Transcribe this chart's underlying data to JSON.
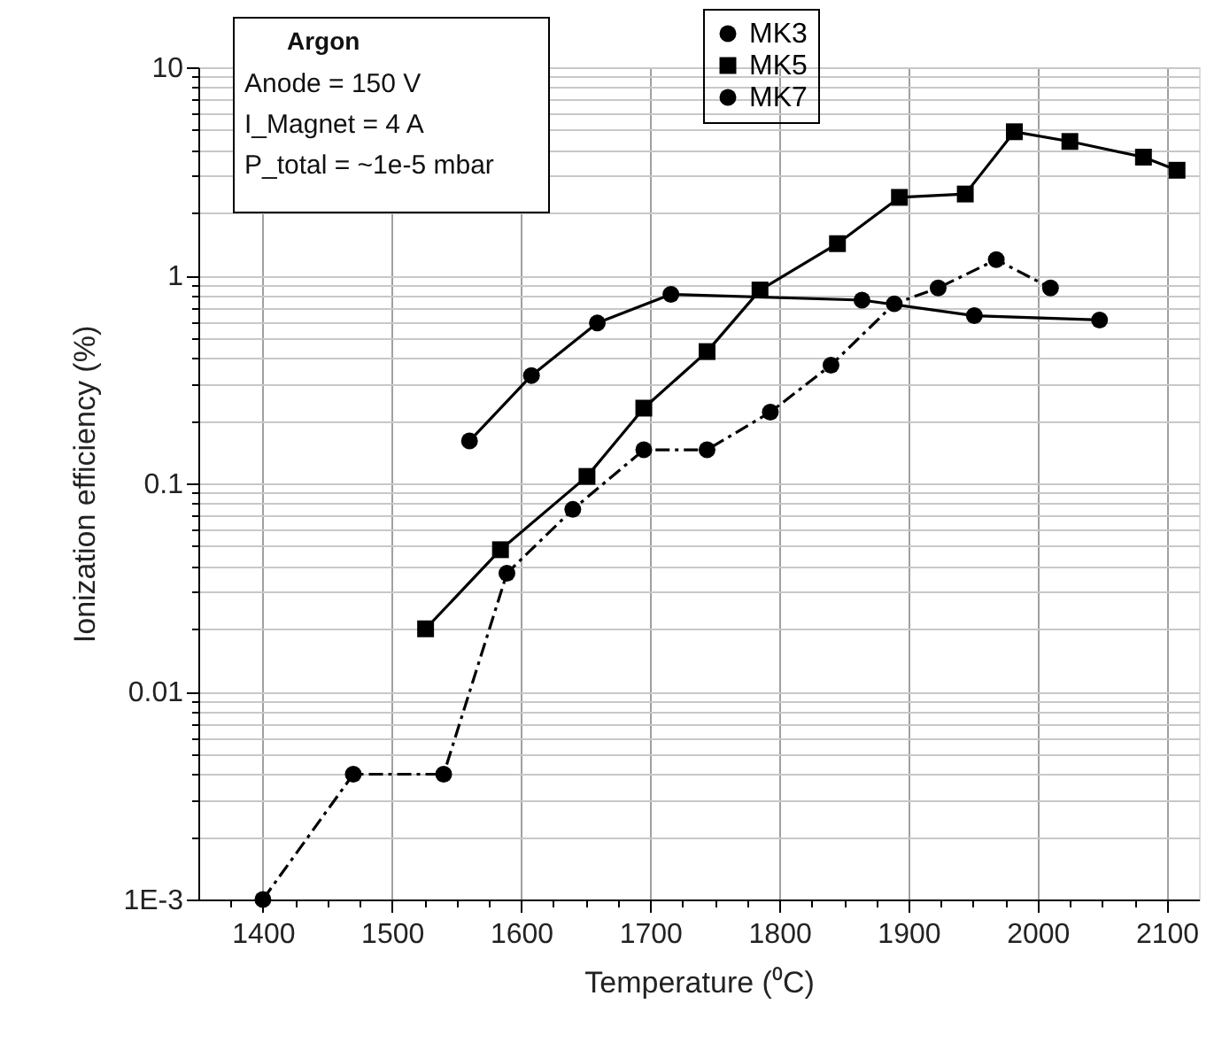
{
  "chart_data": {
    "type": "line",
    "xlabel": "Temperature (⁰C)",
    "ylabel": "Ionization efficiency (%)",
    "annotations": [
      "Argon",
      "Anode = 150 V",
      "I_Magnet = 4 A",
      "P_total = ~1e-5 mbar"
    ],
    "log": "y",
    "grid": true,
    "legend": "top",
    "xlim": [
      1350,
      2125
    ],
    "ylim": [
      0.001,
      10
    ],
    "xticks": [
      {
        "value": 1375,
        "label": null
      },
      1400,
      {
        "value": 1425,
        "label": null
      },
      {
        "value": 1450,
        "label": null
      },
      {
        "value": 1475,
        "label": null
      },
      1500,
      {
        "value": 1525,
        "label": null
      },
      {
        "value": 1550,
        "label": null
      },
      {
        "value": 1575,
        "label": null
      },
      1600,
      {
        "value": 1625,
        "label": null
      },
      {
        "value": 1650,
        "label": null
      },
      {
        "value": 1675,
        "label": null
      },
      1700,
      {
        "value": 1725,
        "label": null
      },
      {
        "value": 1750,
        "label": null
      },
      {
        "value": 1775,
        "label": null
      },
      1800,
      {
        "value": 1825,
        "label": null
      },
      {
        "value": 1850,
        "label": null
      },
      {
        "value": 1875,
        "label": null
      },
      1900,
      {
        "value": 1925,
        "label": null
      },
      {
        "value": 1950,
        "label": null
      },
      {
        "value": 1975,
        "label": null
      },
      2000,
      {
        "value": 2025,
        "label": null
      },
      {
        "value": 2050,
        "label": null
      },
      {
        "value": 2075,
        "label": null
      },
      2100
    ],
    "yticks": [
      {
        "value": 0.001,
        "label": "1E-3"
      },
      {
        "value": 0.002,
        "label": null
      },
      {
        "value": 0.003,
        "label": null
      },
      {
        "value": 0.004,
        "label": null
      },
      {
        "value": 0.005,
        "label": null
      },
      {
        "value": 0.006,
        "label": null
      },
      {
        "value": 0.007,
        "label": null
      },
      {
        "value": 0.008,
        "label": null
      },
      {
        "value": 0.009,
        "label": null
      },
      0.01,
      {
        "value": 0.02,
        "label": null
      },
      {
        "value": 0.03,
        "label": null
      },
      {
        "value": 0.04,
        "label": null
      },
      {
        "value": 0.05,
        "label": null
      },
      {
        "value": 0.06,
        "label": null
      },
      {
        "value": 0.07,
        "label": null
      },
      {
        "value": 0.08,
        "label": null
      },
      {
        "value": 0.09,
        "label": null
      },
      0.1,
      {
        "value": 0.2,
        "label": null
      },
      {
        "value": 0.3,
        "label": null
      },
      {
        "value": 0.4,
        "label": null
      },
      {
        "value": 0.5,
        "label": null
      },
      {
        "value": 0.6,
        "label": null
      },
      {
        "value": 0.7,
        "label": null
      },
      {
        "value": 0.8,
        "label": null
      },
      {
        "value": 0.9,
        "label": null
      },
      1,
      {
        "value": 2,
        "label": null
      },
      {
        "value": 3,
        "label": null
      },
      {
        "value": 4,
        "label": null
      },
      {
        "value": 5,
        "label": null
      },
      {
        "value": 6,
        "label": null
      },
      {
        "value": 7,
        "label": null
      },
      {
        "value": 8,
        "label": null
      },
      {
        "value": 9,
        "label": null
      },
      10
    ],
    "series": [
      {
        "name": "MK3",
        "color": "#000000",
        "marker": "circle",
        "line_style": "solid",
        "x": [
          1560,
          1608,
          1659,
          1716,
          1864,
          1951,
          2048
        ],
        "values": [
          0.16,
          0.33,
          0.59,
          0.81,
          0.76,
          0.64,
          0.61
        ]
      },
      {
        "name": "MK5",
        "color": "#000000",
        "marker": "square",
        "line_style": "solid",
        "x": [
          1526,
          1584,
          1651,
          1695,
          1744,
          1785,
          1845,
          1893,
          1944,
          1982,
          2025,
          2082,
          2108
        ],
        "values": [
          0.02,
          0.048,
          0.108,
          0.23,
          0.43,
          0.85,
          1.42,
          2.37,
          2.46,
          4.9,
          4.4,
          3.7,
          3.2
        ]
      },
      {
        "name": "MK7",
        "color": "#000000",
        "marker": "circle",
        "line_style": "dashdot",
        "x": [
          1400,
          1470,
          1540,
          1589,
          1640,
          1695,
          1744,
          1793,
          1840,
          1889,
          1923,
          1968,
          2010
        ],
        "values": [
          0.001,
          0.004,
          0.004,
          0.037,
          0.075,
          0.145,
          0.145,
          0.22,
          0.37,
          0.73,
          0.87,
          1.19,
          0.87
        ]
      }
    ]
  }
}
